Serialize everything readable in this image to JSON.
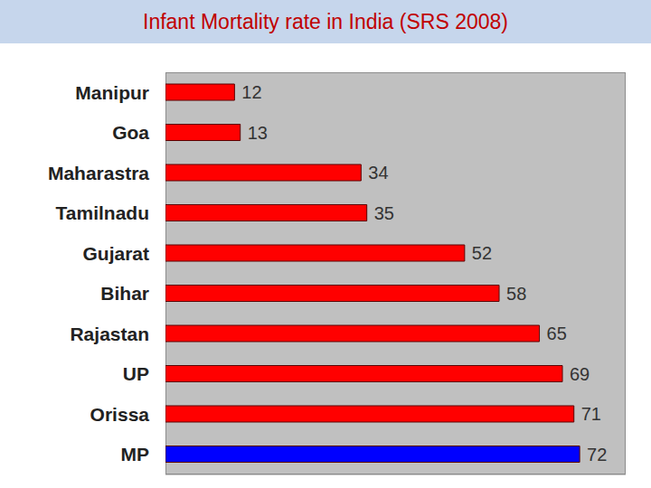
{
  "chart_data": {
    "type": "bar",
    "title": "Infant Mortality rate in India (SRS 2008)",
    "orientation": "horizontal",
    "categories": [
      "Manipur",
      "Goa",
      "Maharastra",
      "Tamilnadu",
      "Gujarat",
      "Bihar",
      "Rajastan",
      "UP",
      "Orissa",
      "MP"
    ],
    "values": [
      12,
      13,
      34,
      35,
      52,
      58,
      65,
      69,
      71,
      72
    ],
    "colors": [
      "#ff0000",
      "#ff0000",
      "#ff0000",
      "#ff0000",
      "#ff0000",
      "#ff0000",
      "#ff0000",
      "#ff0000",
      "#ff0000",
      "#0000ff"
    ],
    "xlim": [
      0,
      80
    ],
    "data_labels": true,
    "tick_labels": "y"
  }
}
